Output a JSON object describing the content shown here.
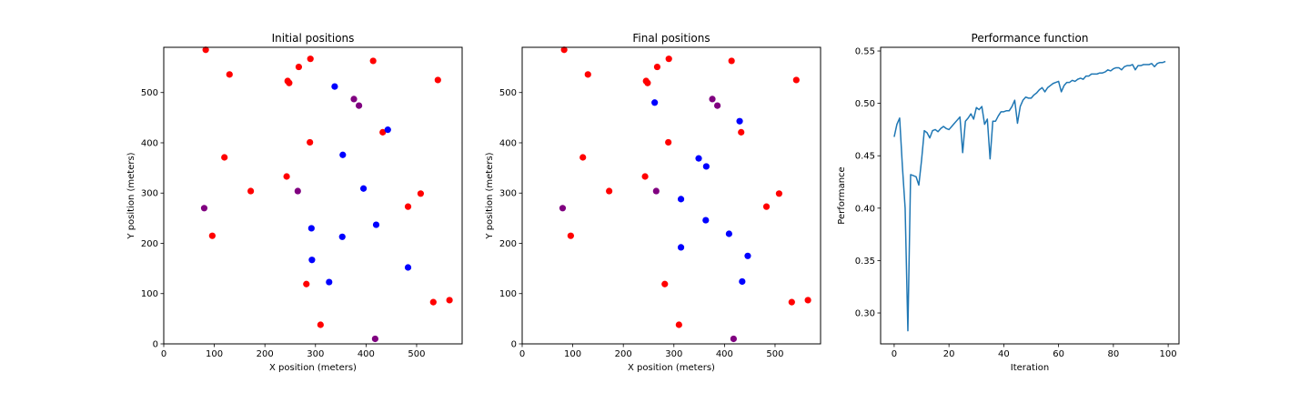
{
  "colors": {
    "red": "#ff0000",
    "blue": "#0000ff",
    "purple": "#800080",
    "line": "#1f77b4",
    "axis": "#000000"
  },
  "chart_data": [
    {
      "type": "scatter",
      "title": "Initial positions",
      "xlabel": "X position (meters)",
      "ylabel": "Y position (meters)",
      "xlim": [
        0,
        590
      ],
      "ylim": [
        0,
        590
      ],
      "xticks": [
        0,
        100,
        200,
        300,
        400,
        500
      ],
      "yticks": [
        0,
        100,
        200,
        300,
        400,
        500
      ],
      "grid": false,
      "groups": [
        {
          "color": "red",
          "points": [
            [
              83,
              585
            ],
            [
              130,
              536
            ],
            [
              267,
              551
            ],
            [
              290,
              567
            ],
            [
              414,
              563
            ],
            [
              245,
              523
            ],
            [
              248,
              519
            ],
            [
              542,
              525
            ],
            [
              433,
              421
            ],
            [
              289,
              401
            ],
            [
              120,
              371
            ],
            [
              172,
              304
            ],
            [
              243,
              333
            ],
            [
              508,
              299
            ],
            [
              483,
              273
            ],
            [
              96,
              215
            ],
            [
              282,
              119
            ],
            [
              533,
              83
            ],
            [
              565,
              87
            ],
            [
              310,
              38
            ]
          ]
        },
        {
          "color": "blue",
          "points": [
            [
              338,
              512
            ],
            [
              443,
              426
            ],
            [
              354,
              376
            ],
            [
              395,
              309
            ],
            [
              292,
              230
            ],
            [
              420,
              237
            ],
            [
              353,
              213
            ],
            [
              293,
              167
            ],
            [
              327,
              123
            ],
            [
              483,
              152
            ]
          ]
        },
        {
          "color": "purple",
          "points": [
            [
              376,
              487
            ],
            [
              386,
              474
            ],
            [
              265,
              304
            ],
            [
              80,
              270
            ],
            [
              418,
              10
            ]
          ]
        }
      ]
    },
    {
      "type": "scatter",
      "title": "Final positions",
      "xlabel": "X position (meters)",
      "ylabel": "Y position (meters)",
      "xlim": [
        0,
        590
      ],
      "ylim": [
        0,
        590
      ],
      "xticks": [
        0,
        100,
        200,
        300,
        400,
        500
      ],
      "yticks": [
        0,
        100,
        200,
        300,
        400,
        500
      ],
      "grid": false,
      "groups": [
        {
          "color": "red",
          "points": [
            [
              83,
              585
            ],
            [
              130,
              536
            ],
            [
              267,
              551
            ],
            [
              290,
              567
            ],
            [
              414,
              563
            ],
            [
              245,
              523
            ],
            [
              248,
              519
            ],
            [
              542,
              525
            ],
            [
              433,
              421
            ],
            [
              289,
              401
            ],
            [
              120,
              371
            ],
            [
              172,
              304
            ],
            [
              243,
              333
            ],
            [
              508,
              299
            ],
            [
              483,
              273
            ],
            [
              96,
              215
            ],
            [
              282,
              119
            ],
            [
              533,
              83
            ],
            [
              565,
              87
            ],
            [
              310,
              38
            ]
          ]
        },
        {
          "color": "blue",
          "points": [
            [
              262,
              480
            ],
            [
              430,
              443
            ],
            [
              349,
              369
            ],
            [
              364,
              353
            ],
            [
              314,
              288
            ],
            [
              363,
              246
            ],
            [
              409,
              219
            ],
            [
              314,
              192
            ],
            [
              446,
              175
            ],
            [
              435,
              124
            ]
          ]
        },
        {
          "color": "purple",
          "points": [
            [
              376,
              487
            ],
            [
              386,
              474
            ],
            [
              265,
              304
            ],
            [
              80,
              270
            ],
            [
              418,
              10
            ]
          ]
        }
      ]
    },
    {
      "type": "line",
      "title": "Performance function",
      "xlabel": "Iteration",
      "ylabel": "Performance",
      "xlim": [
        -4.95,
        103.95
      ],
      "ylim": [
        0.2705,
        0.5535
      ],
      "xticks": [
        0,
        20,
        40,
        60,
        80,
        100
      ],
      "yticks": [
        0.3,
        0.35,
        0.4,
        0.45,
        0.5,
        0.55
      ],
      "ytick_labels": [
        "0.30",
        "0.35",
        "0.40",
        "0.45",
        "0.50",
        "0.55"
      ],
      "grid": false,
      "series": [
        {
          "x": [
            0,
            1,
            2,
            3,
            4,
            5,
            6,
            7,
            8,
            9,
            10,
            11,
            12,
            13,
            14,
            15,
            16,
            17,
            18,
            19,
            20,
            21,
            22,
            23,
            24,
            25,
            26,
            27,
            28,
            29,
            30,
            31,
            32,
            33,
            34,
            35,
            36,
            37,
            38,
            39,
            40,
            41,
            42,
            43,
            44,
            45,
            46,
            47,
            48,
            49,
            50,
            51,
            52,
            53,
            54,
            55,
            56,
            57,
            58,
            59,
            60,
            61,
            62,
            63,
            64,
            65,
            66,
            67,
            68,
            69,
            70,
            71,
            72,
            73,
            74,
            75,
            76,
            77,
            78,
            79,
            80,
            81,
            82,
            83,
            84,
            85,
            86,
            87,
            88,
            89,
            90,
            91,
            92,
            93,
            94,
            95,
            96,
            97,
            98,
            99
          ],
          "values": [
            0.468,
            0.48,
            0.486,
            0.44,
            0.4,
            0.283,
            0.432,
            0.431,
            0.43,
            0.422,
            0.446,
            0.474,
            0.472,
            0.467,
            0.474,
            0.475,
            0.473,
            0.476,
            0.478,
            0.476,
            0.475,
            0.478,
            0.481,
            0.484,
            0.487,
            0.453,
            0.483,
            0.486,
            0.49,
            0.485,
            0.496,
            0.494,
            0.497,
            0.48,
            0.485,
            0.447,
            0.483,
            0.483,
            0.488,
            0.492,
            0.492,
            0.493,
            0.493,
            0.497,
            0.503,
            0.481,
            0.497,
            0.503,
            0.506,
            0.505,
            0.505,
            0.508,
            0.51,
            0.513,
            0.515,
            0.511,
            0.515,
            0.517,
            0.519,
            0.52,
            0.521,
            0.511,
            0.517,
            0.52,
            0.52,
            0.522,
            0.521,
            0.523,
            0.524,
            0.523,
            0.526,
            0.526,
            0.528,
            0.528,
            0.528,
            0.529,
            0.529,
            0.53,
            0.532,
            0.531,
            0.533,
            0.534,
            0.534,
            0.532,
            0.535,
            0.536,
            0.536,
            0.537,
            0.532,
            0.536,
            0.536,
            0.537,
            0.537,
            0.537,
            0.538,
            0.535,
            0.538,
            0.539,
            0.539,
            0.54
          ]
        }
      ]
    }
  ]
}
